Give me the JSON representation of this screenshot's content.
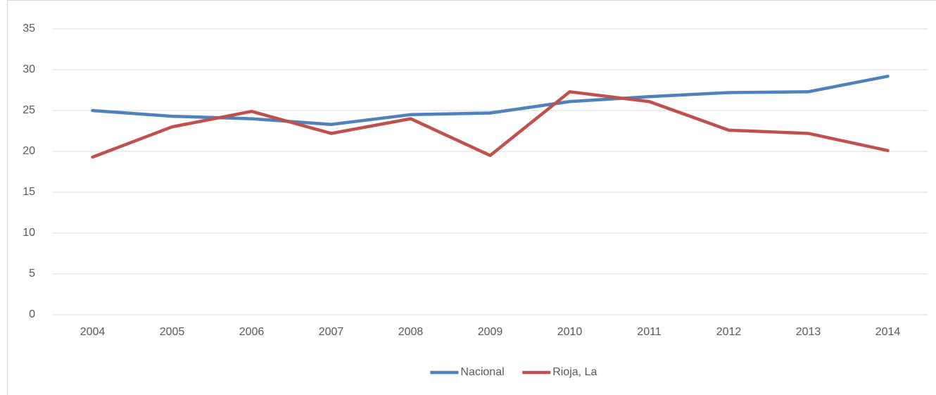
{
  "chart_data": {
    "type": "line",
    "categories": [
      "2004",
      "2005",
      "2006",
      "2007",
      "2008",
      "2009",
      "2010",
      "2011",
      "2012",
      "2013",
      "2014"
    ],
    "series": [
      {
        "name": "Nacional",
        "color": "#4f81bd",
        "values": [
          25.0,
          24.3,
          24.0,
          23.3,
          24.5,
          24.7,
          26.1,
          26.7,
          27.2,
          27.3,
          29.2
        ]
      },
      {
        "name": "Rioja, La",
        "color": "#c0504d",
        "values": [
          19.3,
          23.0,
          24.9,
          22.2,
          24.0,
          19.5,
          27.3,
          26.1,
          22.6,
          22.2,
          20.1
        ]
      }
    ],
    "ylim": [
      0,
      35
    ],
    "yticks": [
      0,
      5,
      10,
      15,
      20,
      25,
      30,
      35
    ],
    "grid": true,
    "legend": "bottom"
  }
}
